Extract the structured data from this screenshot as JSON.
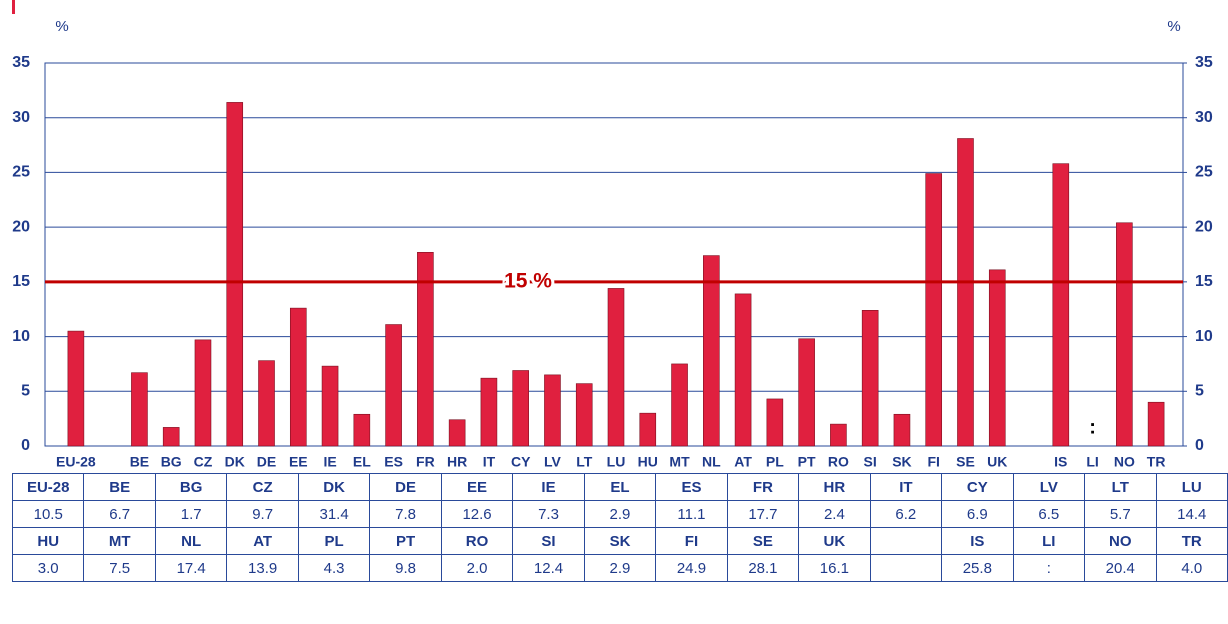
{
  "chart_data": {
    "type": "bar",
    "y_label": "%",
    "y2_label": "%",
    "categories": [
      "EU-28",
      null,
      "BE",
      "BG",
      "CZ",
      "DK",
      "DE",
      "EE",
      "IE",
      "EL",
      "ES",
      "FR",
      "HR",
      "IT",
      "CY",
      "LV",
      "LT",
      "LU",
      "HU",
      "MT",
      "NL",
      "AT",
      "PL",
      "PT",
      "RO",
      "SI",
      "SK",
      "FI",
      "SE",
      "UK",
      null,
      "IS",
      "LI",
      "NO",
      "TR"
    ],
    "values": [
      10.5,
      null,
      6.7,
      1.7,
      9.7,
      31.4,
      7.8,
      12.6,
      7.3,
      2.9,
      11.1,
      17.7,
      2.4,
      6.2,
      6.9,
      6.5,
      5.7,
      14.4,
      3.0,
      7.5,
      17.4,
      13.9,
      4.3,
      9.8,
      2.0,
      12.4,
      2.9,
      24.9,
      28.1,
      16.1,
      null,
      25.8,
      null,
      20.4,
      4.0
    ],
    "value_labels": [
      null,
      null,
      null,
      null,
      null,
      null,
      null,
      null,
      null,
      null,
      null,
      null,
      null,
      null,
      null,
      null,
      null,
      null,
      null,
      null,
      null,
      null,
      null,
      null,
      null,
      null,
      null,
      null,
      null,
      null,
      null,
      null,
      ":",
      null,
      null
    ],
    "color": "#e0203f",
    "ylim": [
      0,
      35
    ],
    "yticks": [
      0,
      5,
      10,
      15,
      20,
      25,
      30,
      35
    ],
    "y2lim": [
      0,
      35
    ],
    "y2ticks": [
      0,
      5,
      10,
      15,
      20,
      25,
      30,
      35
    ],
    "grid": true,
    "reference_line": {
      "value": 15,
      "label": "15 %",
      "color": "#c00000"
    }
  },
  "table": {
    "rows": [
      [
        "EU-28",
        "BE",
        "BG",
        "CZ",
        "DK",
        "DE",
        "EE",
        "IE",
        "EL",
        "ES",
        "FR",
        "HR",
        "IT",
        "CY",
        "LV",
        "LT",
        "LU"
      ],
      [
        "10.5",
        "6.7",
        "1.7",
        "9.7",
        "31.4",
        "7.8",
        "12.6",
        "7.3",
        "2.9",
        "11.1",
        "17.7",
        "2.4",
        "6.2",
        "6.9",
        "6.5",
        "5.7",
        "14.4"
      ],
      [
        "HU",
        "MT",
        "NL",
        "AT",
        "PL",
        "PT",
        "RO",
        "SI",
        "SK",
        "FI",
        "SE",
        "UK",
        null,
        "IS",
        "LI",
        "NO",
        "TR"
      ],
      [
        "3.0",
        "7.5",
        "17.4",
        "13.9",
        "4.3",
        "9.8",
        "2.0",
        "12.4",
        "2.9",
        "24.9",
        "28.1",
        "16.1",
        null,
        "25.8",
        ":",
        "20.4",
        "4.0"
      ]
    ]
  }
}
